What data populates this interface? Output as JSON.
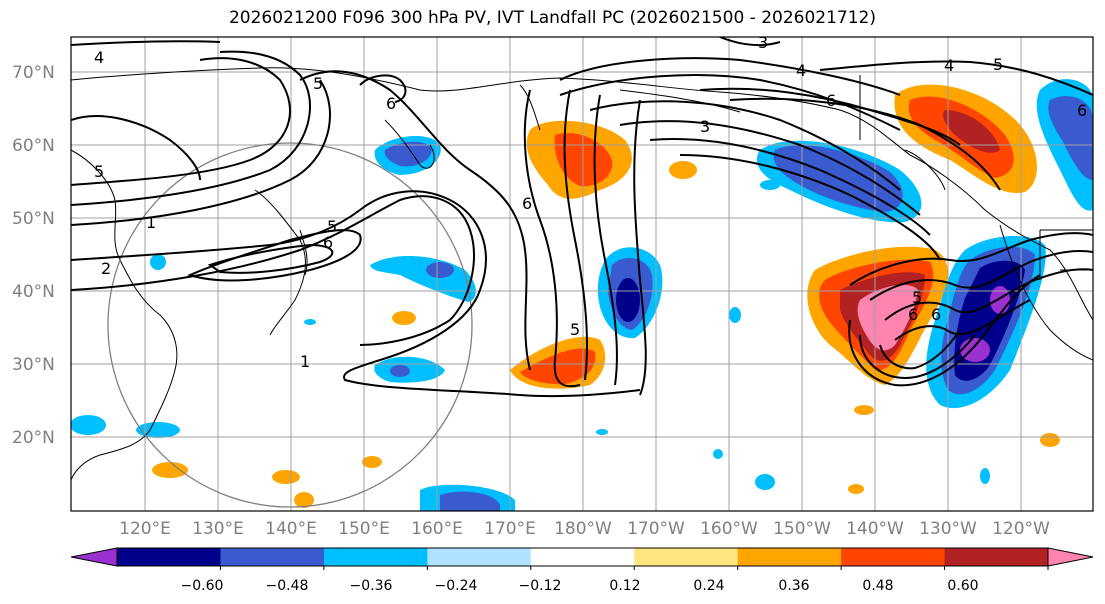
{
  "title": "2026021200 F096 300 hPa PV, IVT Landfall PC (2026021500 - 2026021712)",
  "lat_labels": [
    "70°N",
    "60°N",
    "50°N",
    "40°N",
    "30°N",
    "20°N"
  ],
  "lon_labels": [
    "120°E",
    "130°E",
    "140°E",
    "150°E",
    "160°E",
    "170°E",
    "180°W",
    "170°W",
    "160°W",
    "150°W",
    "140°W",
    "130°W",
    "120°W"
  ],
  "colorbar": {
    "ticks": [
      "−0.60",
      "−0.48",
      "−0.36",
      "−0.24",
      "−0.12",
      "0.12",
      "0.24",
      "0.36",
      "0.48",
      "0.60"
    ],
    "colors": [
      "#9b30d0",
      "#00008b",
      "#3a5bd0",
      "#00bfff",
      "#b0e2ff",
      "#ffffff",
      "#ffe680",
      "#ffa500",
      "#ff4500",
      "#b22222",
      "#ff85b0"
    ]
  },
  "contour_labels": [
    "4",
    "5",
    "6",
    "3",
    "4",
    "6",
    "5",
    "4",
    "5",
    "6",
    "6",
    "1",
    "2",
    "5",
    "6",
    "1",
    "6",
    "6",
    "5",
    "5",
    "3"
  ]
}
